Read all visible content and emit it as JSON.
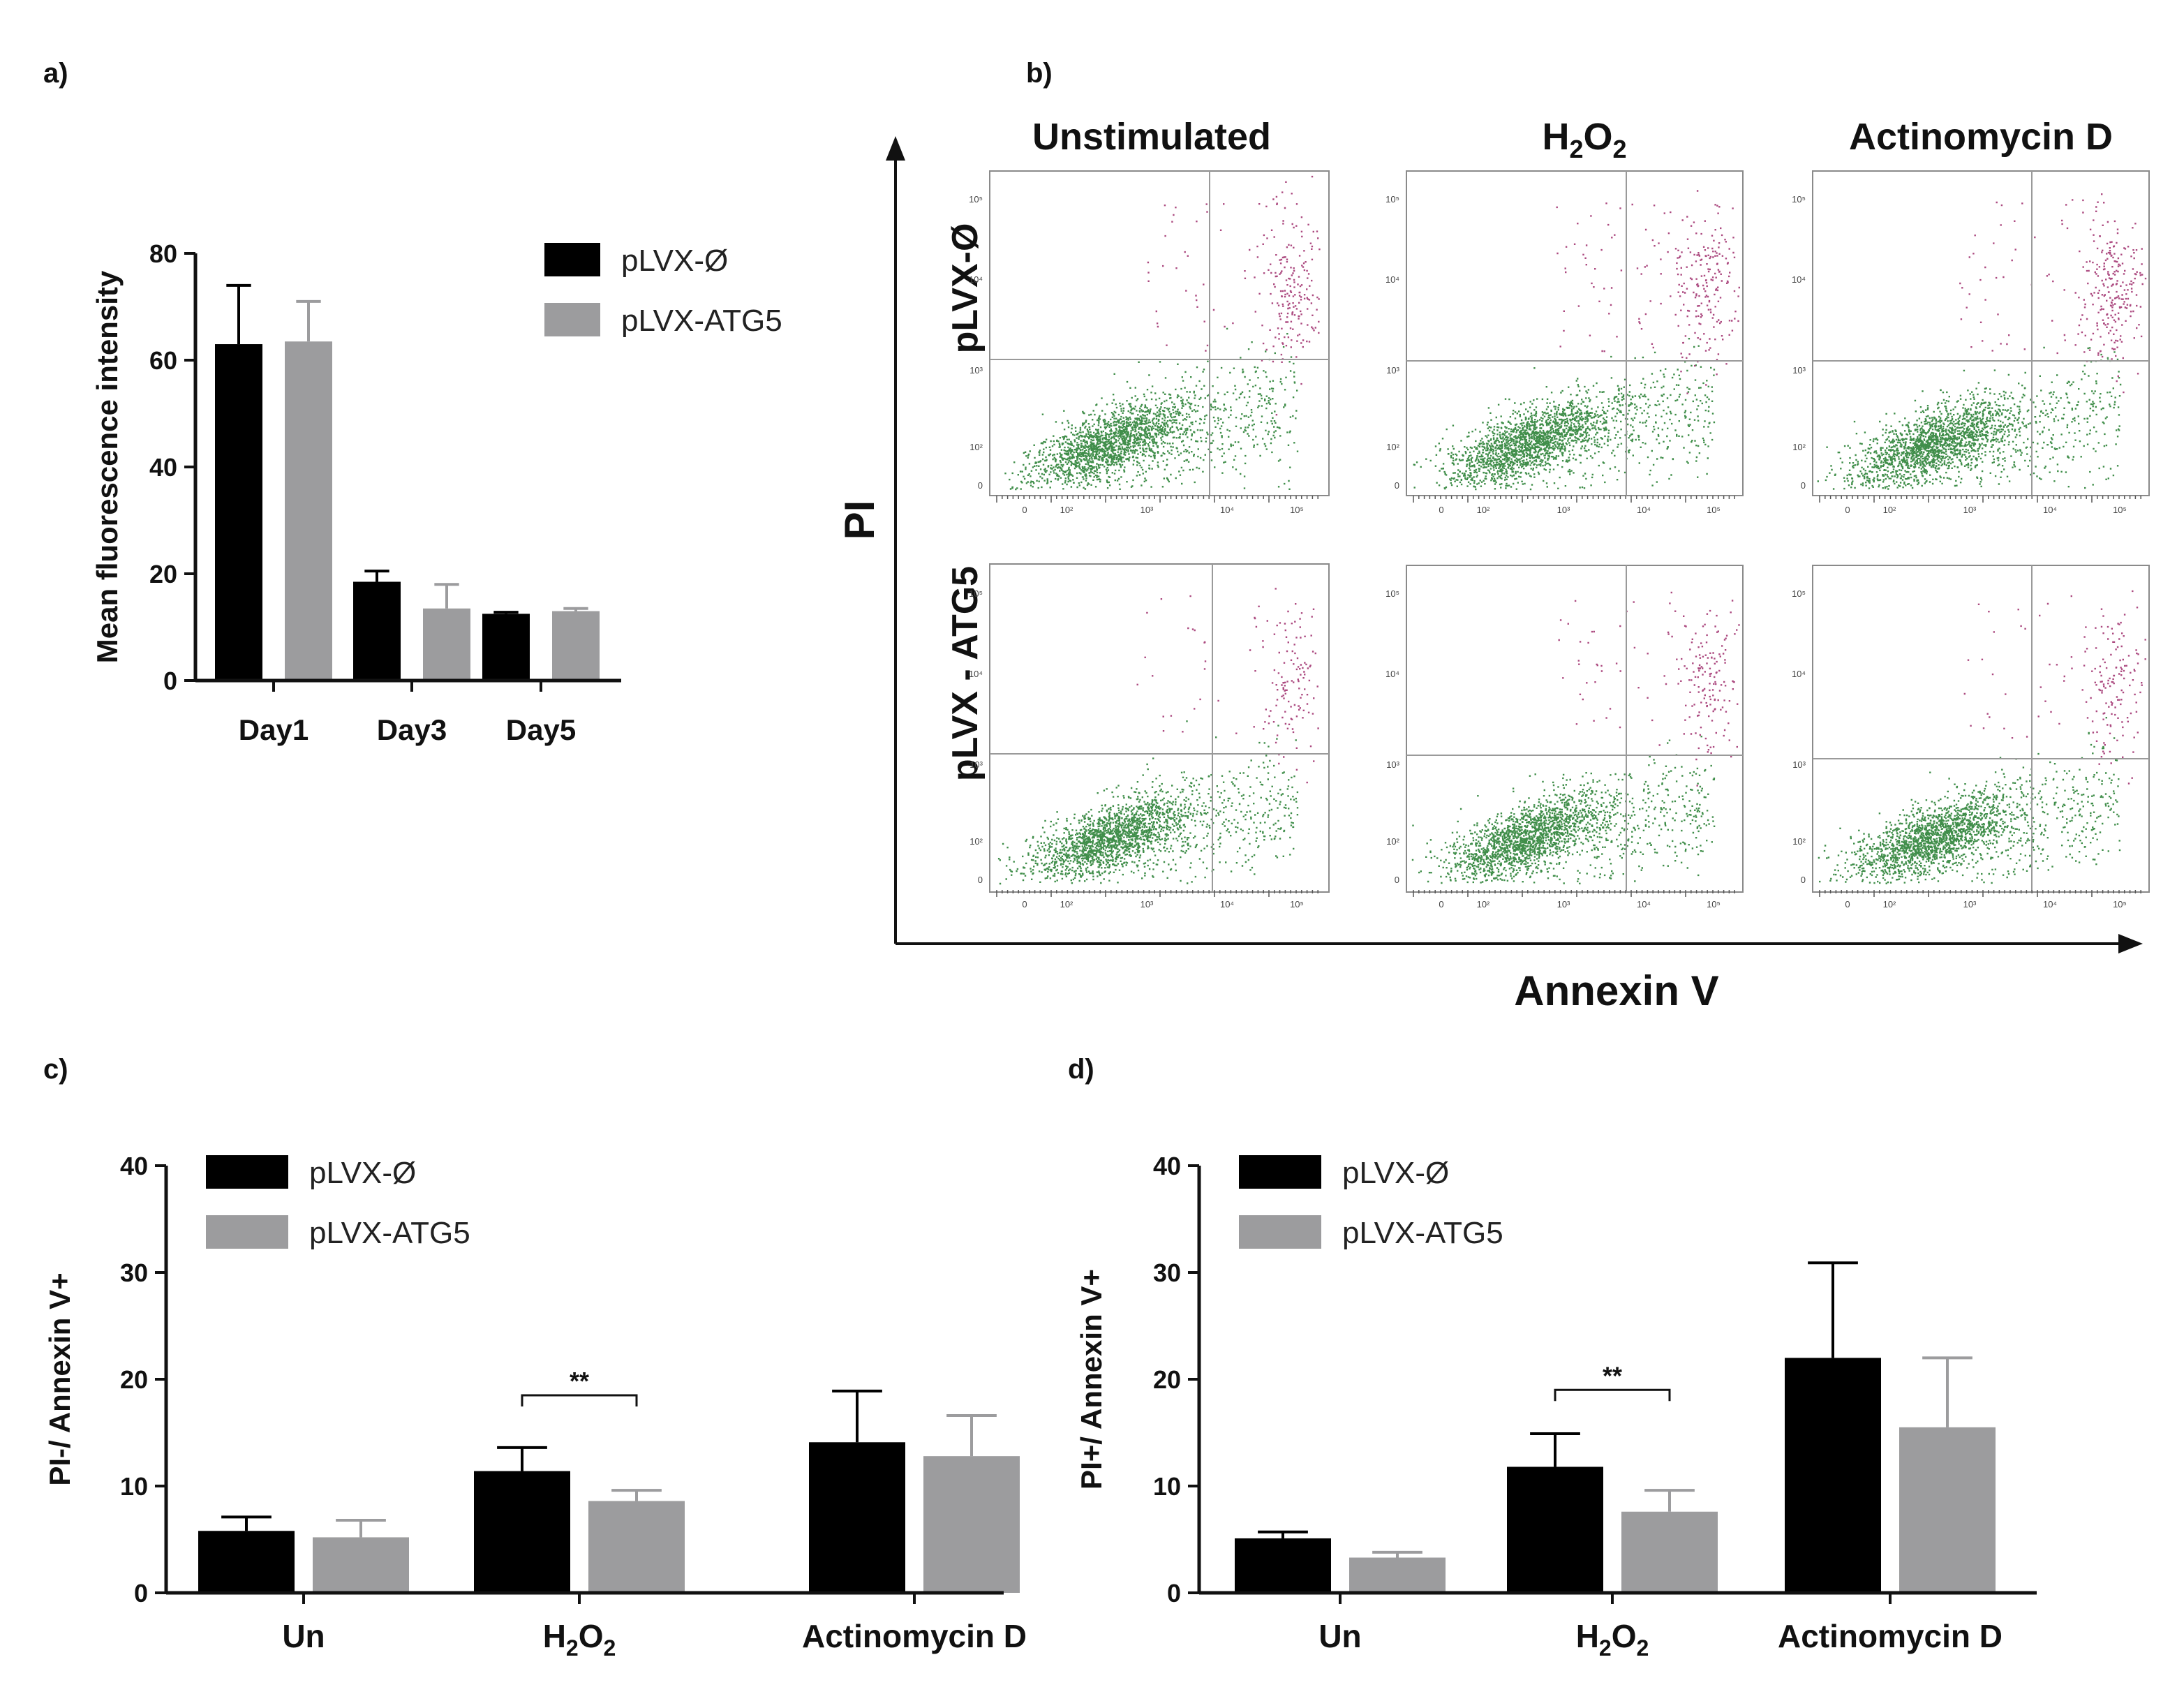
{
  "colors": {
    "series0": "#000000",
    "series1": "#9c9c9e",
    "live": "#1f7a2a",
    "dead": "#9e2a6a",
    "gate": "#9a9a9a"
  },
  "panel_a": {
    "letter": "a)"
  },
  "panel_b": {
    "letter": "b)",
    "col_titles": [
      "Unstimulated",
      "H",
      "2",
      "O",
      "2",
      "Actinomycin D"
    ],
    "row_titles": [
      "pLVX-Ø",
      "pLVX - ATG5"
    ],
    "x_axis_label": "Annexin V",
    "y_axis_label": "PI",
    "tick_labels": [
      "0",
      "10²",
      "10³",
      "10⁴",
      "10⁵"
    ]
  },
  "panel_c": {
    "letter": "c)",
    "sig_text": "**"
  },
  "panel_d": {
    "letter": "d)",
    "sig_text": "**"
  },
  "chart_data": [
    {
      "id": "a",
      "type": "bar",
      "title": "",
      "categories": [
        "Day1",
        "Day3",
        "Day5"
      ],
      "series": [
        {
          "name": "pLVX-Ø",
          "values": [
            63,
            18.5,
            12.5
          ],
          "errors": [
            11,
            2,
            0.3
          ]
        },
        {
          "name": "pLVX-ATG5",
          "values": [
            63.5,
            13.5,
            13
          ],
          "errors": [
            7.5,
            4.5,
            0.5
          ]
        }
      ],
      "xlabel": "",
      "ylabel": "Mean fluorescence intensity",
      "ylim": [
        0,
        80
      ],
      "yticks": [
        "0",
        "20",
        "40",
        "60",
        "80"
      ],
      "legend": "top-right"
    },
    {
      "id": "c",
      "type": "bar",
      "title": "",
      "categories": [
        "Un",
        "H2O2",
        "Actinomycin D"
      ],
      "series": [
        {
          "name": "pLVX-Ø",
          "values": [
            5.8,
            11.4,
            14.1
          ],
          "errors": [
            1.3,
            2.2,
            4.8
          ]
        },
        {
          "name": "pLVX-ATG5",
          "values": [
            5.2,
            8.6,
            12.8
          ],
          "errors": [
            1.6,
            1.0,
            3.8
          ]
        }
      ],
      "xlabel": "",
      "ylabel": "PI-/ Annexin V+",
      "ylim": [
        0,
        40
      ],
      "yticks": [
        "0",
        "10",
        "20",
        "30",
        "40"
      ],
      "legend": "top-left",
      "annotations": [
        {
          "type": "significance",
          "category": "H2O2",
          "text": "**",
          "level": 18.5
        }
      ]
    },
    {
      "id": "d",
      "type": "bar",
      "title": "",
      "categories": [
        "Un",
        "H2O2",
        "Actinomycin D"
      ],
      "series": [
        {
          "name": "pLVX-Ø",
          "values": [
            5.1,
            11.8,
            22.0
          ],
          "errors": [
            0.6,
            3.1,
            8.9
          ]
        },
        {
          "name": "pLVX-ATG5",
          "values": [
            3.3,
            7.6,
            15.5
          ],
          "errors": [
            0.5,
            2.0,
            6.5
          ]
        }
      ],
      "xlabel": "",
      "ylabel": "PI+/ Annexin V+",
      "ylim": [
        0,
        40
      ],
      "yticks": [
        "0",
        "10",
        "20",
        "30",
        "40"
      ],
      "legend": "top-left",
      "annotations": [
        {
          "type": "significance",
          "category": "H2O2",
          "text": "**",
          "level": 19.0
        }
      ]
    }
  ]
}
